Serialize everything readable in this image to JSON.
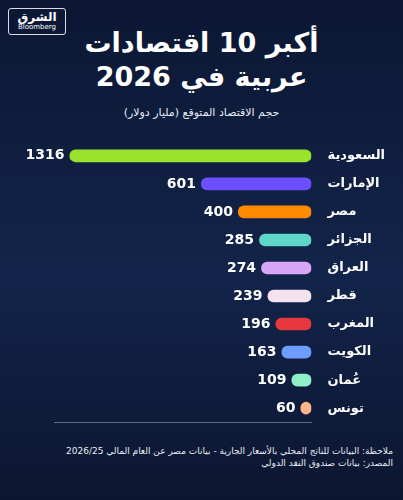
{
  "header": {
    "brand": [
      "الشرق",
      "Bloomberg"
    ]
  },
  "chart_data": {
    "type": "bar",
    "orientation": "horizontal",
    "title": "أكبر 10 اقتصادات عربية في 2026",
    "subtitle": "حجم الاقتصاد المتوقع (مليار دولار)",
    "annotations": [
      "ملاحظة: البيانات للناتج المحلي بالأسعار الجارية - بيانات مصر عن العام المالي 2026/25",
      "المصدر: بيانات صندوق النقد الدولي"
    ],
    "categories": [
      "السعودية",
      "الإمارات",
      "مصر",
      "الجزائر",
      "العراق",
      "قطر",
      "المغرب",
      "الكويت",
      "عُمان",
      "تونس"
    ],
    "values": [
      1316,
      601,
      400,
      285,
      274,
      239,
      196,
      163,
      109,
      60
    ],
    "colors": [
      "#9be22d",
      "#6c4dff",
      "#ff8a00",
      "#5ed6c8",
      "#d7a6f5",
      "#f3e3ef",
      "#e8383d",
      "#6f9cff",
      "#8ff0c8",
      "#ffb48a"
    ],
    "xlim": [
      0,
      1400
    ],
    "xticks": [],
    "grid": false,
    "data_labels": true,
    "tick_labels": "y"
  }
}
